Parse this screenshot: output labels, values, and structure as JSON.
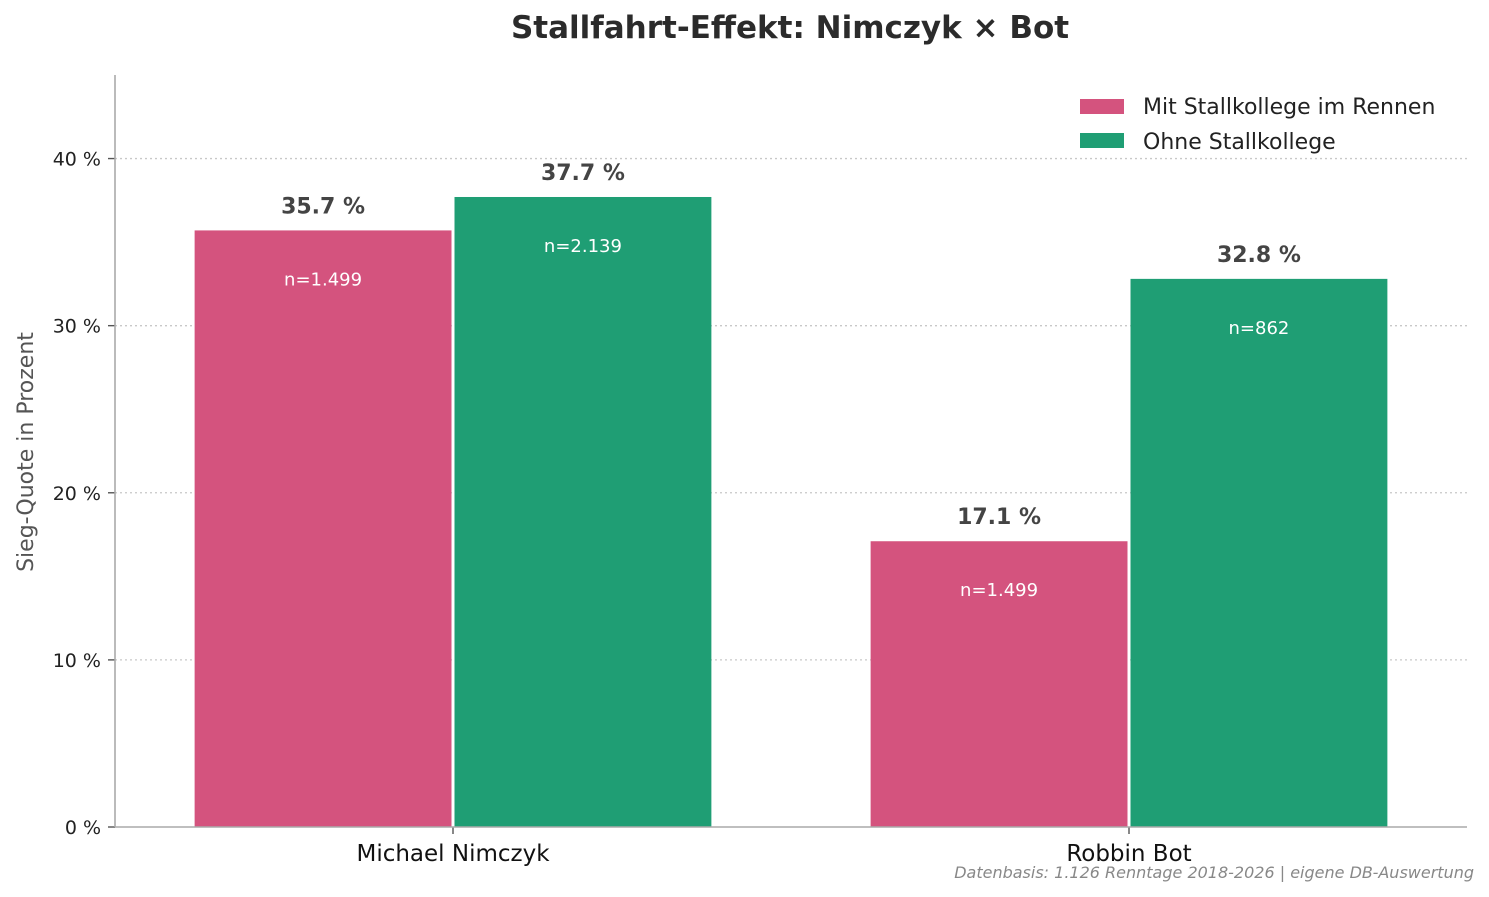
{
  "chart_data": {
    "type": "bar",
    "title": "Stallfahrt-Effekt: Nimczyk × Bot",
    "xlabel": "",
    "ylabel": "Sieg-Quote in Prozent",
    "categories": [
      "Michael Nimczyk",
      "Robbin Bot"
    ],
    "series": [
      {
        "name": "Mit Stallkollege im Rennen",
        "color": "#d4537e",
        "values": [
          35.7,
          17.1
        ],
        "value_labels": [
          "35.7 %",
          "17.1 %"
        ],
        "n_labels": [
          "n=1.499",
          "n=1.499"
        ]
      },
      {
        "name": "Ohne Stallkollege",
        "color": "#1f9e74",
        "values": [
          37.7,
          32.8
        ],
        "value_labels": [
          "37.7 %",
          "32.8 %"
        ],
        "n_labels": [
          "n=2.139",
          "n=862"
        ]
      }
    ],
    "ylim": [
      0,
      45
    ],
    "yticks": [
      0,
      10,
      20,
      30,
      40
    ],
    "ytick_labels": [
      "0 %",
      "10 %",
      "20 %",
      "30 %",
      "40 %"
    ],
    "grid": "horizontal dotted",
    "legend_position": "top-right",
    "footnote": "Datenbasis: 1.126 Renntage 2018-2026 | eigene DB-Auswertung"
  }
}
